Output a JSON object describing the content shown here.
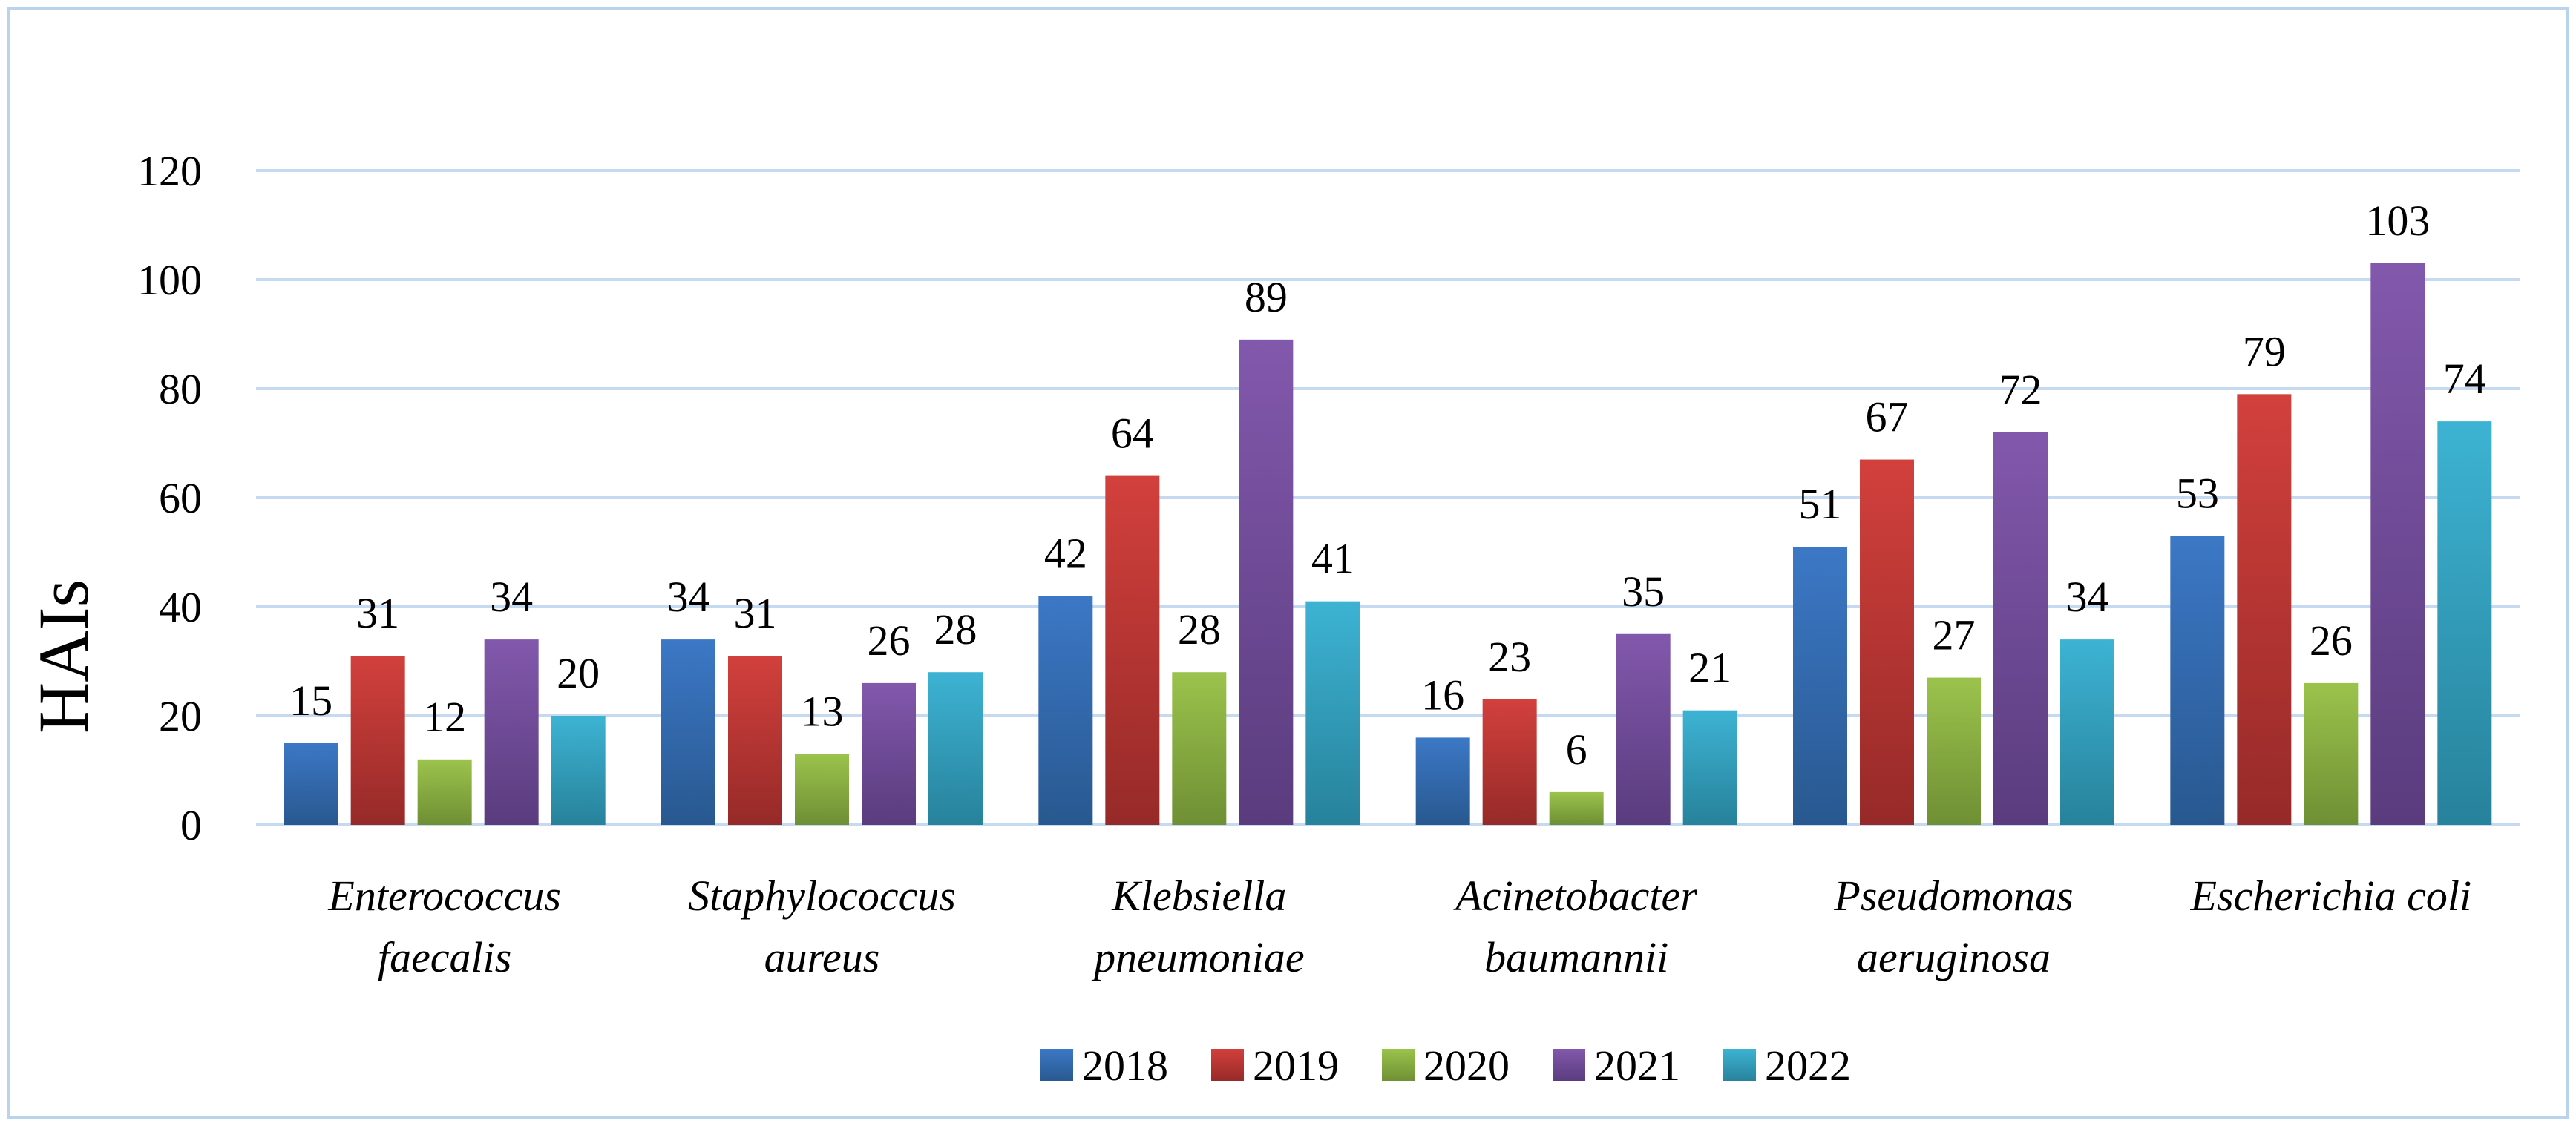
{
  "chart_data": {
    "type": "bar",
    "title": "",
    "xlabel": "",
    "ylabel": "HAIs",
    "ylim": [
      0,
      120
    ],
    "yticks": [
      0,
      20,
      40,
      60,
      80,
      100,
      120
    ],
    "grid": true,
    "legend_position": "bottom",
    "categories": [
      [
        "Enterococcus",
        "faecalis"
      ],
      [
        "Staphylococcus",
        "aureus"
      ],
      [
        "Klebsiella",
        "pneumoniae"
      ],
      [
        "Acinetobacter",
        "baumannii"
      ],
      [
        "Pseudomonas",
        "aeruginosa"
      ],
      [
        "Escherichia coli"
      ]
    ],
    "series": [
      {
        "name": "2018",
        "values": [
          15,
          34,
          42,
          16,
          51,
          53
        ],
        "color": "#3c78c6",
        "color_dark": "#28588f"
      },
      {
        "name": "2019",
        "values": [
          31,
          31,
          64,
          23,
          67,
          79
        ],
        "color": "#d2403c",
        "color_dark": "#962a28"
      },
      {
        "name": "2020",
        "values": [
          12,
          13,
          28,
          6,
          27,
          26
        ],
        "color": "#9bc34c",
        "color_dark": "#6f8f34"
      },
      {
        "name": "2021",
        "values": [
          34,
          26,
          89,
          35,
          72,
          103
        ],
        "color": "#8258ac",
        "color_dark": "#5a3c7e"
      },
      {
        "name": "2022",
        "values": [
          20,
          28,
          41,
          21,
          34,
          74
        ],
        "color": "#3db3d3",
        "color_dark": "#27829b"
      }
    ]
  }
}
